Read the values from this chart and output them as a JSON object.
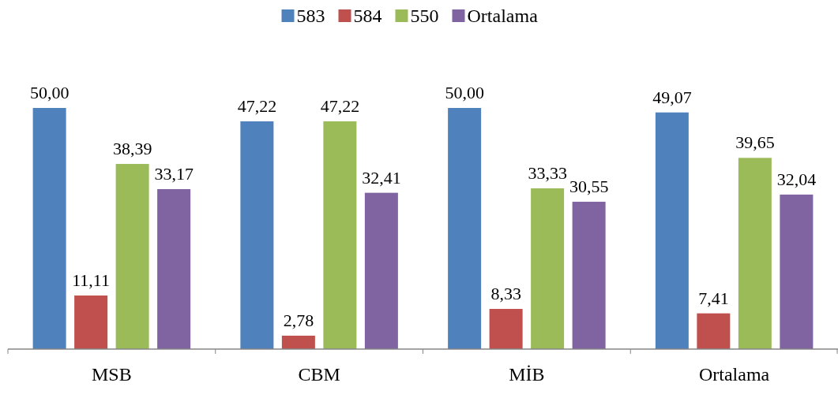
{
  "chart_data": {
    "type": "bar",
    "categories": [
      "MSB",
      "CBM",
      "MİB",
      "Ortalama"
    ],
    "series": [
      {
        "name": "583",
        "color": "#4f81bd",
        "values": [
          50.0,
          47.22,
          50.0,
          49.07
        ],
        "value_labels": [
          "50,00",
          "47,22",
          "50,00",
          "49,07"
        ]
      },
      {
        "name": "584",
        "color": "#c0504d",
        "values": [
          11.11,
          2.78,
          8.33,
          7.41
        ],
        "value_labels": [
          "11,11",
          "2,78",
          "8,33",
          "7,41"
        ]
      },
      {
        "name": "550",
        "color": "#9bbb59",
        "values": [
          38.39,
          47.22,
          33.33,
          39.65
        ],
        "value_labels": [
          "38,39",
          "47,22",
          "33,33",
          "39,65"
        ]
      },
      {
        "name": "Ortalama",
        "color": "#8064a2",
        "values": [
          33.17,
          32.41,
          30.55,
          32.04
        ],
        "value_labels": [
          "33,17",
          "32,41",
          "30,55",
          "32,04"
        ]
      }
    ],
    "legend": "top"
  }
}
